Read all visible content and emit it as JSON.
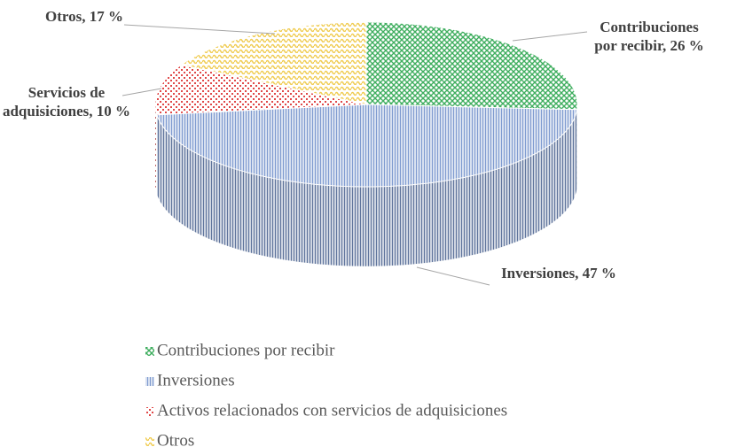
{
  "chart_data": {
    "type": "pie3d",
    "categories": [
      "Contribuciones por recibir",
      "Inversiones",
      "Activos relacionados con servicios de adquisiciones",
      "Otros"
    ],
    "values": [
      26,
      47,
      10,
      17
    ],
    "value_labels": [
      "Contribuciones por recibir, 26 %",
      "Inversiones, 47 %",
      "Servicios de adquisiciones, 10 %",
      "Otros, 17 %"
    ],
    "colors": [
      "#3fae5f",
      "#7f9bd0",
      "#e04848",
      "#f0cc50"
    ],
    "legend": "bottom"
  }
}
